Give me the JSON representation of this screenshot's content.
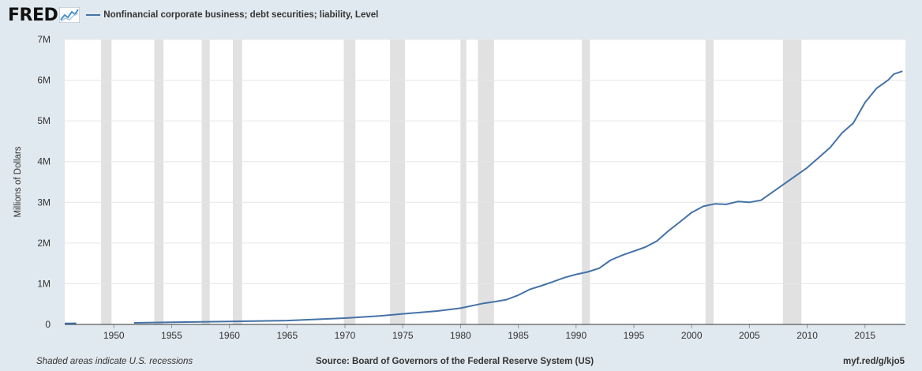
{
  "header": {
    "logo": "FRED",
    "logo_icon": "chart-line-icon"
  },
  "footer": {
    "note": "Shaded areas indicate U.S. recessions",
    "source": "Source: Board of Governors of the Federal Reserve System (US)",
    "url": "myf.red/g/kjo5"
  },
  "colors": {
    "line": "#4572a7",
    "recession": "#e1e1e1",
    "plot_bg": "#ffffff",
    "page_bg": "#e1e9f0"
  },
  "chart_data": {
    "type": "line",
    "title": "",
    "xlabel": "",
    "ylabel": "Millions of Dollars",
    "xlim": [
      1945.75,
      2018.5
    ],
    "ylim": [
      0,
      7000000
    ],
    "grid": true,
    "legend_position": "top-left",
    "x_ticks": [
      "1950",
      "1955",
      "1960",
      "1965",
      "1970",
      "1975",
      "1980",
      "1985",
      "1990",
      "1995",
      "2000",
      "2005",
      "2010",
      "2015"
    ],
    "y_ticks": [
      "0",
      "1M",
      "2M",
      "3M",
      "4M",
      "5M",
      "6M",
      "7M"
    ],
    "recessions": [
      [
        1948.9,
        1949.8
      ],
      [
        1953.5,
        1954.3
      ],
      [
        1957.6,
        1958.3
      ],
      [
        1960.3,
        1961.1
      ],
      [
        1969.9,
        1970.9
      ],
      [
        1973.9,
        1975.2
      ],
      [
        1980.0,
        1980.5
      ],
      [
        1981.5,
        1982.9
      ],
      [
        1990.5,
        1991.2
      ],
      [
        2001.2,
        2001.9
      ],
      [
        2007.9,
        2009.5
      ]
    ],
    "series": [
      {
        "name": "Nonfinancial corporate business; debt securities; liability, Level",
        "segments": [
          {
            "x": [
              1945.75,
              1946.75
            ],
            "y": [
              25000,
              28000
            ]
          },
          {
            "x": [
              1951.75,
              1955,
              1960,
              1965,
              1970,
              1973,
              1975,
              1978,
              1980,
              1981,
              1982,
              1983,
              1984,
              1985,
              1986,
              1987,
              1988,
              1989,
              1990,
              1991,
              1992,
              1993,
              1994,
              1995,
              1996,
              1997,
              1998,
              1999,
              2000,
              2001,
              2002,
              2003,
              2004,
              2005,
              2006,
              2007,
              2008,
              2009,
              2010,
              2011,
              2012,
              2013,
              2014,
              2015,
              2016,
              2017,
              2017.5,
              2018.25
            ],
            "y": [
              38000,
              52000,
              72000,
              95000,
              155000,
              210000,
              260000,
              330000,
              400000,
              460000,
              520000,
              560000,
              610000,
              720000,
              860000,
              950000,
              1050000,
              1150000,
              1230000,
              1290000,
              1380000,
              1580000,
              1700000,
              1800000,
              1900000,
              2050000,
              2300000,
              2520000,
              2750000,
              2900000,
              2960000,
              2950000,
              3020000,
              3000000,
              3050000,
              3250000,
              3450000,
              3650000,
              3850000,
              4100000,
              4350000,
              4700000,
              4950000,
              5450000,
              5800000,
              6000000,
              6150000,
              6220000
            ]
          }
        ]
      }
    ]
  }
}
